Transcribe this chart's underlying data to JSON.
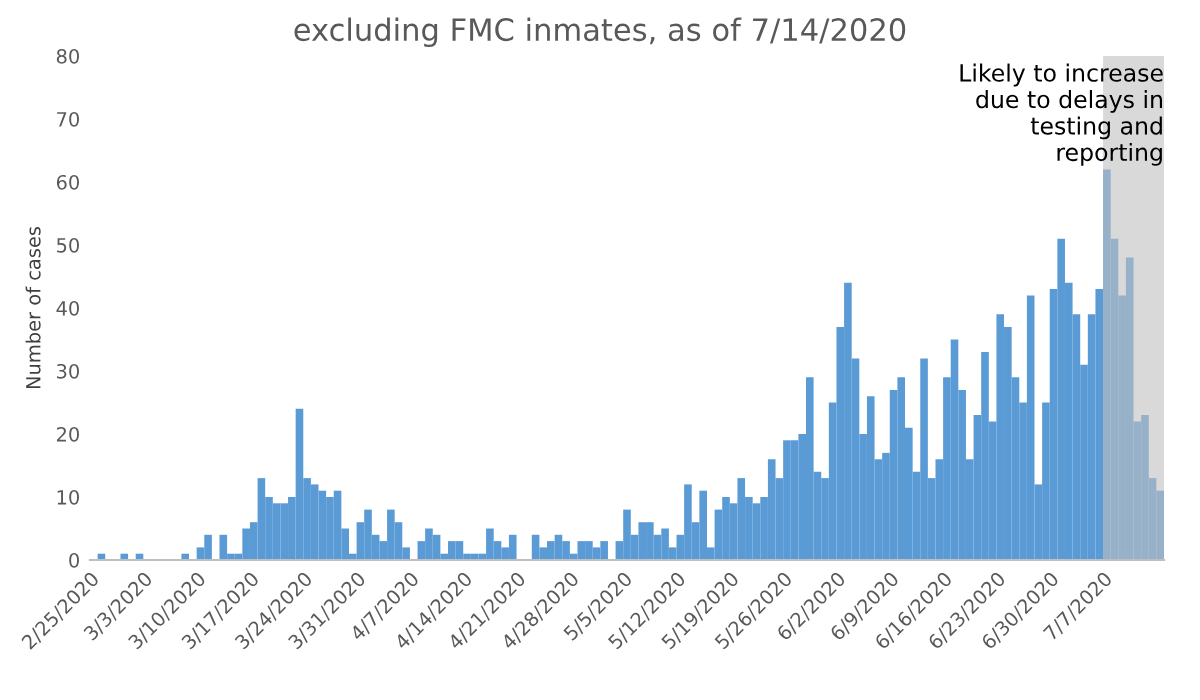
{
  "chart_data": {
    "type": "bar",
    "title": "excluding FMC inmates, as of 7/14/2020",
    "ylabel": "Number of cases",
    "x": [
      "2020-02-26",
      "2020-02-27",
      "2020-02-28",
      "2020-02-29",
      "2020-03-01",
      "2020-03-02",
      "2020-03-03",
      "2020-03-04",
      "2020-03-05",
      "2020-03-06",
      "2020-03-07",
      "2020-03-08",
      "2020-03-09",
      "2020-03-10",
      "2020-03-11",
      "2020-03-12",
      "2020-03-13",
      "2020-03-14",
      "2020-03-15",
      "2020-03-16",
      "2020-03-17",
      "2020-03-18",
      "2020-03-19",
      "2020-03-20",
      "2020-03-21",
      "2020-03-22",
      "2020-03-23",
      "2020-03-24",
      "2020-03-25",
      "2020-03-26",
      "2020-03-27",
      "2020-03-28",
      "2020-03-29",
      "2020-03-30",
      "2020-03-31",
      "2020-04-01",
      "2020-04-02",
      "2020-04-03",
      "2020-04-04",
      "2020-04-05",
      "2020-04-06",
      "2020-04-07",
      "2020-04-08",
      "2020-04-09",
      "2020-04-10",
      "2020-04-11",
      "2020-04-12",
      "2020-04-13",
      "2020-04-14",
      "2020-04-15",
      "2020-04-16",
      "2020-04-17",
      "2020-04-18",
      "2020-04-19",
      "2020-04-20",
      "2020-04-21",
      "2020-04-22",
      "2020-04-23",
      "2020-04-24",
      "2020-04-25",
      "2020-04-26",
      "2020-04-27",
      "2020-04-28",
      "2020-04-29",
      "2020-04-30",
      "2020-05-01",
      "2020-05-02",
      "2020-05-03",
      "2020-05-04",
      "2020-05-05",
      "2020-05-06",
      "2020-05-07",
      "2020-05-08",
      "2020-05-09",
      "2020-05-10",
      "2020-05-11",
      "2020-05-12",
      "2020-05-13",
      "2020-05-14",
      "2020-05-15",
      "2020-05-16",
      "2020-05-17",
      "2020-05-18",
      "2020-05-19",
      "2020-05-20",
      "2020-05-21",
      "2020-05-22",
      "2020-05-23",
      "2020-05-24",
      "2020-05-25",
      "2020-05-26",
      "2020-05-27",
      "2020-05-28",
      "2020-05-29",
      "2020-05-30",
      "2020-05-31",
      "2020-06-01",
      "2020-06-02",
      "2020-06-03",
      "2020-06-04",
      "2020-06-05",
      "2020-06-06",
      "2020-06-07",
      "2020-06-08",
      "2020-06-09",
      "2020-06-10",
      "2020-06-11",
      "2020-06-12",
      "2020-06-13",
      "2020-06-14",
      "2020-06-15",
      "2020-06-16",
      "2020-06-17",
      "2020-06-18",
      "2020-06-19",
      "2020-06-20",
      "2020-06-21",
      "2020-06-22",
      "2020-06-23",
      "2020-06-24",
      "2020-06-25",
      "2020-06-26",
      "2020-06-27",
      "2020-06-28",
      "2020-06-29",
      "2020-06-30",
      "2020-07-01",
      "2020-07-02",
      "2020-07-03",
      "2020-07-04",
      "2020-07-05",
      "2020-07-06",
      "2020-07-07",
      "2020-07-08",
      "2020-07-09",
      "2020-07-10",
      "2020-07-11",
      "2020-07-12",
      "2020-07-13",
      "2020-07-14"
    ],
    "values": [
      1,
      0,
      0,
      1,
      0,
      1,
      0,
      0,
      0,
      0,
      0,
      1,
      0,
      2,
      4,
      0,
      4,
      1,
      1,
      5,
      6,
      13,
      10,
      9,
      9,
      10,
      24,
      13,
      12,
      11,
      10,
      11,
      5,
      1,
      6,
      8,
      4,
      3,
      8,
      6,
      2,
      0,
      3,
      5,
      4,
      1,
      3,
      3,
      1,
      1,
      1,
      5,
      3,
      2,
      4,
      0,
      0,
      4,
      2,
      3,
      4,
      3,
      1,
      3,
      3,
      2,
      3,
      0,
      3,
      8,
      4,
      6,
      6,
      4,
      5,
      2,
      4,
      12,
      6,
      11,
      2,
      8,
      10,
      9,
      13,
      10,
      9,
      10,
      16,
      13,
      19,
      19,
      20,
      29,
      14,
      13,
      25,
      37,
      44,
      32,
      20,
      26,
      16,
      17,
      27,
      29,
      21,
      14,
      32,
      13,
      16,
      29,
      35,
      27,
      16,
      23,
      33,
      22,
      39,
      37,
      29,
      25,
      42,
      12,
      25,
      43,
      51,
      44,
      39,
      31,
      39,
      43,
      62,
      51,
      42,
      48,
      22,
      23,
      13,
      11
    ],
    "color": "#5b9bd5",
    "xlim": [
      "2020-02-25",
      "2020-07-15"
    ],
    "xticks": [
      {
        "value": "2020-02-25",
        "label": "2/25/2020"
      },
      {
        "value": "2020-03-03",
        "label": "3/3/2020"
      },
      {
        "value": "2020-03-10",
        "label": "3/10/2020"
      },
      {
        "value": "2020-03-17",
        "label": "3/17/2020"
      },
      {
        "value": "2020-03-24",
        "label": "3/24/2020"
      },
      {
        "value": "2020-03-31",
        "label": "3/31/2020"
      },
      {
        "value": "2020-04-07",
        "label": "4/7/2020"
      },
      {
        "value": "2020-04-14",
        "label": "4/14/2020"
      },
      {
        "value": "2020-04-21",
        "label": "4/21/2020"
      },
      {
        "value": "2020-04-28",
        "label": "4/28/2020"
      },
      {
        "value": "2020-05-05",
        "label": "5/5/2020"
      },
      {
        "value": "2020-05-12",
        "label": "5/12/2020"
      },
      {
        "value": "2020-05-19",
        "label": "5/19/2020"
      },
      {
        "value": "2020-05-26",
        "label": "5/26/2020"
      },
      {
        "value": "2020-06-02",
        "label": "6/2/2020"
      },
      {
        "value": "2020-06-09",
        "label": "6/9/2020"
      },
      {
        "value": "2020-06-16",
        "label": "6/16/2020"
      },
      {
        "value": "2020-06-23",
        "label": "6/23/2020"
      },
      {
        "value": "2020-06-30",
        "label": "6/30/2020"
      },
      {
        "value": "2020-07-07",
        "label": "7/7/2020"
      }
    ],
    "ylim": [
      0,
      80
    ],
    "yticks": [
      0,
      10,
      20,
      30,
      40,
      50,
      60,
      70,
      80
    ],
    "grid": false,
    "bands": [
      {
        "axis": "x",
        "from": "2020-07-07",
        "to": "2020-07-15",
        "label": "Likely to increase\ndue to delays in\ntesting and\nreporting",
        "color": "#bfbfbf"
      }
    ]
  }
}
